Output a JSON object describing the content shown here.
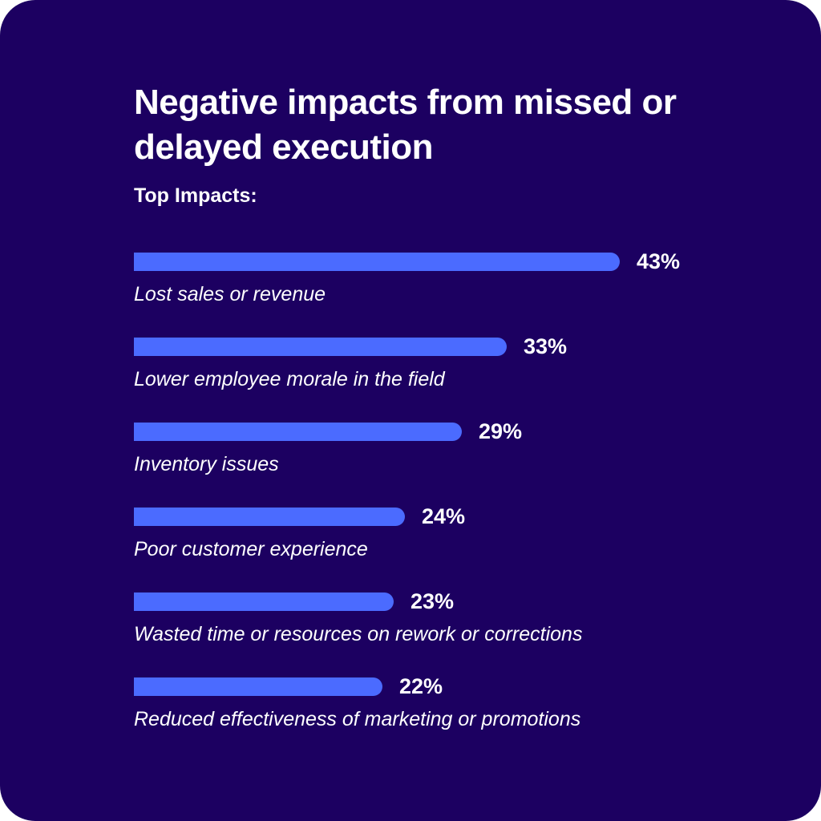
{
  "title": "Negative impacts from missed or delayed execution",
  "subtitle": "Top Impacts:",
  "colors": {
    "background": "#1c0061",
    "bar": "#4b6bff",
    "text": "#ffffff"
  },
  "chart_data": {
    "type": "bar",
    "orientation": "horizontal",
    "title": "Negative impacts from missed or delayed execution",
    "subtitle": "Top Impacts:",
    "unit": "%",
    "categories": [
      "Lost sales or revenue",
      "Lower employee morale in the field",
      "Inventory issues",
      "Poor customer experience",
      "Wasted time or resources on rework or corrections",
      "Reduced effectiveness of marketing or promotions"
    ],
    "values": [
      43,
      33,
      29,
      24,
      23,
      22
    ],
    "value_labels": [
      "43%",
      "33%",
      "29%",
      "24%",
      "23%",
      "22%"
    ],
    "xlim": [
      0,
      43
    ],
    "grid": false,
    "legend": "none"
  }
}
